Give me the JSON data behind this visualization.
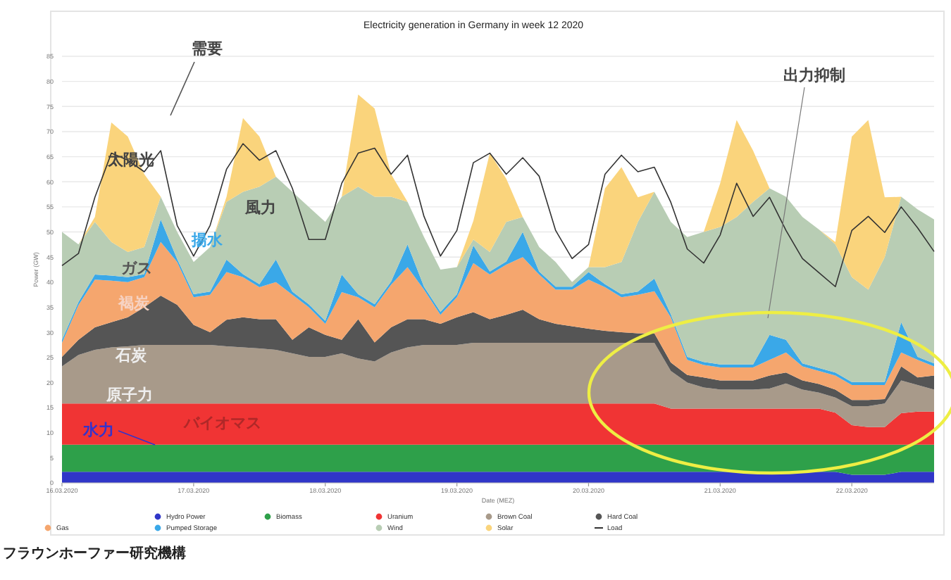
{
  "chart_data": {
    "type": "area",
    "stacked": true,
    "title": "Electricity generation in Germany in week 12 2020",
    "xlabel": "Date (MEZ)",
    "ylabel": "Power (GW)",
    "x": [
      "2020-03-16T00:00",
      "2020-03-16T03:00",
      "2020-03-16T06:00",
      "2020-03-16T09:00",
      "2020-03-16T12:00",
      "2020-03-16T15:00",
      "2020-03-16T18:00",
      "2020-03-16T21:00",
      "2020-03-17T00:00",
      "2020-03-17T03:00",
      "2020-03-17T06:00",
      "2020-03-17T09:00",
      "2020-03-17T12:00",
      "2020-03-17T15:00",
      "2020-03-17T18:00",
      "2020-03-17T21:00",
      "2020-03-18T00:00",
      "2020-03-18T03:00",
      "2020-03-18T06:00",
      "2020-03-18T09:00",
      "2020-03-18T12:00",
      "2020-03-18T15:00",
      "2020-03-18T18:00",
      "2020-03-18T21:00",
      "2020-03-19T00:00",
      "2020-03-19T03:00",
      "2020-03-19T06:00",
      "2020-03-19T09:00",
      "2020-03-19T12:00",
      "2020-03-19T15:00",
      "2020-03-19T18:00",
      "2020-03-19T21:00",
      "2020-03-20T00:00",
      "2020-03-20T03:00",
      "2020-03-20T06:00",
      "2020-03-20T09:00",
      "2020-03-20T12:00",
      "2020-03-20T15:00",
      "2020-03-20T18:00",
      "2020-03-20T21:00",
      "2020-03-21T00:00",
      "2020-03-21T03:00",
      "2020-03-21T06:00",
      "2020-03-21T09:00",
      "2020-03-21T12:00",
      "2020-03-21T15:00",
      "2020-03-21T18:00",
      "2020-03-21T21:00",
      "2020-03-22T00:00",
      "2020-03-22T03:00",
      "2020-03-22T06:00",
      "2020-03-22T09:00",
      "2020-03-22T12:00",
      "2020-03-22T15:00"
    ],
    "series": [
      {
        "name": "Hydro Power",
        "color": "#3036c8",
        "values": [
          2.2,
          2.2,
          2.2,
          2.2,
          2.2,
          2.2,
          2.2,
          2.2,
          2.2,
          2.2,
          2.2,
          2.2,
          2.2,
          2.2,
          2.2,
          2.2,
          2.2,
          2.2,
          2.2,
          2.2,
          2.2,
          2.2,
          2.2,
          2.2,
          2.2,
          2.2,
          2.2,
          2.2,
          2.2,
          2.2,
          2.2,
          2.2,
          2.2,
          2.2,
          2.2,
          2.2,
          2.2,
          2.2,
          2.2,
          2.2,
          2.2,
          2.2,
          2.2,
          2.2,
          2.2,
          2.2,
          2.2,
          2.2,
          1.6,
          1.6,
          1.6,
          2.2,
          2.2,
          2.2
        ]
      },
      {
        "name": "Biomass",
        "color": "#2ea04a",
        "values": [
          5.4,
          5.4,
          5.4,
          5.4,
          5.4,
          5.4,
          5.4,
          5.4,
          5.4,
          5.4,
          5.4,
          5.4,
          5.4,
          5.4,
          5.4,
          5.4,
          5.4,
          5.4,
          5.4,
          5.4,
          5.4,
          5.4,
          5.4,
          5.4,
          5.4,
          5.4,
          5.4,
          5.4,
          5.4,
          5.4,
          5.4,
          5.4,
          5.4,
          5.4,
          5.4,
          5.4,
          5.4,
          5.4,
          5.4,
          5.4,
          5.4,
          5.4,
          5.4,
          5.4,
          5.4,
          5.4,
          5.4,
          5.4,
          6.0,
          6.0,
          6.0,
          5.4,
          5.4,
          5.4
        ]
      },
      {
        "name": "Uranium",
        "color": "#f03434",
        "values": [
          8.2,
          8.2,
          8.2,
          8.2,
          8.2,
          8.2,
          8.2,
          8.2,
          8.2,
          8.2,
          8.2,
          8.2,
          8.2,
          8.2,
          8.2,
          8.2,
          8.2,
          8.2,
          8.2,
          8.2,
          8.2,
          8.2,
          8.2,
          8.2,
          8.2,
          8.2,
          8.2,
          8.2,
          8.2,
          8.2,
          8.2,
          8.2,
          8.2,
          8.2,
          8.2,
          8.2,
          8.2,
          7.2,
          7.2,
          7.2,
          7.2,
          7.2,
          7.2,
          7.2,
          7.2,
          7.2,
          7.2,
          6.4,
          3.9,
          3.5,
          3.5,
          6.3,
          6.6,
          6.6
        ]
      },
      {
        "name": "Brown Coal",
        "color": "#a89a8a",
        "values": [
          7.4,
          9.7,
          10.7,
          11.2,
          11.4,
          11.7,
          11.7,
          11.7,
          11.7,
          11.7,
          11.4,
          11.2,
          11.0,
          10.7,
          10.0,
          9.3,
          9.3,
          10.0,
          9.0,
          8.4,
          10.2,
          11.2,
          11.7,
          11.7,
          11.7,
          12.1,
          12.1,
          12.1,
          12.1,
          12.1,
          12.1,
          12.1,
          12.1,
          12.1,
          12.1,
          12.1,
          12.1,
          7.5,
          5.2,
          4.2,
          3.8,
          3.8,
          3.8,
          4.0,
          5.0,
          3.8,
          3.2,
          3.0,
          3.8,
          4.2,
          4.7,
          6.5,
          5.3,
          4.4
        ]
      },
      {
        "name": "Hard Coal",
        "color": "#555555",
        "values": [
          1.9,
          3.0,
          4.5,
          5.0,
          5.8,
          7.5,
          9.8,
          8.0,
          4.0,
          2.5,
          5.3,
          6.0,
          5.8,
          6.1,
          2.7,
          5.9,
          4.4,
          2.7,
          7.8,
          3.8,
          5.0,
          5.6,
          5.1,
          4.2,
          5.5,
          6.1,
          4.7,
          5.6,
          6.6,
          4.7,
          3.8,
          3.3,
          2.8,
          2.4,
          2.1,
          1.9,
          1.9,
          1.7,
          1.5,
          2.0,
          1.8,
          1.8,
          1.8,
          2.6,
          2.2,
          1.8,
          1.7,
          1.6,
          1.2,
          1.2,
          0.9,
          2.8,
          1.5,
          2.8
        ]
      },
      {
        "name": "Gas",
        "color": "#f5a66e",
        "values": [
          2.8,
          6.9,
          9.5,
          8.3,
          7.0,
          6.0,
          10.7,
          8.5,
          5.5,
          7.5,
          9.5,
          8.0,
          6.4,
          7.4,
          9.0,
          4.0,
          2.2,
          9.5,
          4.4,
          7.0,
          8.5,
          10.4,
          5.9,
          1.8,
          4.0,
          9.8,
          8.9,
          10.0,
          10.5,
          8.9,
          6.8,
          7.3,
          9.8,
          8.7,
          7.0,
          7.7,
          8.4,
          9.0,
          3.0,
          2.5,
          2.6,
          2.6,
          2.6,
          3.1,
          4.0,
          2.8,
          2.6,
          2.8,
          3.0,
          3.0,
          2.8,
          2.8,
          3.5,
          1.8
        ]
      },
      {
        "name": "Pumped Storage",
        "color": "#3aa8e8",
        "values": [
          0.6,
          0.6,
          1.0,
          1.0,
          1.0,
          0.6,
          4.5,
          0.6,
          0.6,
          0.6,
          2.5,
          0.6,
          0.6,
          4.5,
          0.6,
          0.6,
          0.6,
          3.5,
          0.6,
          0.6,
          0.6,
          4.5,
          0.6,
          0.6,
          0.6,
          3.5,
          0.6,
          0.6,
          5.0,
          0.6,
          0.6,
          0.6,
          1.5,
          0.6,
          0.6,
          0.6,
          2.5,
          0.6,
          0.6,
          0.6,
          0.6,
          0.6,
          0.6,
          5.0,
          2.5,
          0.6,
          0.6,
          0.6,
          0.6,
          0.6,
          0.6,
          6.0,
          0.6,
          0.6
        ]
      },
      {
        "name": "Wind",
        "color": "#b8cdb4",
        "values": [
          21.5,
          11.5,
          10.5,
          6.7,
          5.0,
          5.4,
          4.5,
          5.4,
          6.4,
          8.9,
          11.5,
          16.4,
          19.4,
          16.5,
          19.9,
          19.4,
          19.7,
          15.5,
          21.4,
          21.4,
          16.9,
          8.5,
          9.9,
          8.4,
          5.4,
          1.2,
          3.9,
          7.9,
          3.0,
          4.9,
          4.9,
          0.9,
          1.0,
          3.4,
          6.4,
          13.9,
          17.3,
          18.4,
          23.9,
          25.9,
          27.4,
          29.4,
          32.4,
          29.2,
          28.5,
          29.2,
          27.6,
          25.5,
          20.9,
          18.4,
          24.9,
          25.0,
          29.4,
          28.7
        ]
      },
      {
        "name": "Solar",
        "color": "#fad47c",
        "values": [
          0,
          0,
          1.0,
          23.8,
          23.0,
          14.5,
          0,
          0,
          0,
          0,
          1.0,
          14.7,
          10.0,
          0,
          0,
          0,
          0,
          0,
          18.4,
          17.6,
          4.5,
          0,
          0,
          0,
          0,
          3.7,
          19.7,
          8.6,
          0,
          0,
          0,
          0,
          0,
          15.7,
          18.9,
          4.9,
          0,
          0,
          0,
          0,
          8.7,
          19.3,
          10.2,
          0,
          0,
          0,
          0,
          0.5,
          28.0,
          33.8,
          11.9,
          0,
          0,
          0
        ]
      },
      {
        "name": "Load",
        "type": "line",
        "color": "#333333",
        "values": [
          43.3,
          45.7,
          56.9,
          65.7,
          64.3,
          62.0,
          66.2,
          51.3,
          45.2,
          51.3,
          62.5,
          67.6,
          64.3,
          66.2,
          58.7,
          48.5,
          48.5,
          59.7,
          65.7,
          66.7,
          61.5,
          65.3,
          53.1,
          45.2,
          50.3,
          63.8,
          65.7,
          61.5,
          64.8,
          61.1,
          50.3,
          44.7,
          47.5,
          61.5,
          65.3,
          62.0,
          62.9,
          55.9,
          46.6,
          43.8,
          49.4,
          59.7,
          53.1,
          56.9,
          50.3,
          44.7,
          41.9,
          39.1,
          50.3,
          53.1,
          49.9,
          55.0,
          50.8,
          46.1
        ]
      }
    ],
    "xlim": [
      "2020-03-16T00:00",
      "2020-03-22T15:00"
    ],
    "xticks": [
      {
        "value": "2020-03-16",
        "label": "16.03.2020"
      },
      {
        "value": "2020-03-17",
        "label": "17.03.2020"
      },
      {
        "value": "2020-03-18",
        "label": "18.03.2020"
      },
      {
        "value": "2020-03-19",
        "label": "19.03.2020"
      },
      {
        "value": "2020-03-20",
        "label": "20.03.2020"
      },
      {
        "value": "2020-03-21",
        "label": "21.03.2020"
      },
      {
        "value": "2020-03-22",
        "label": "22.03.2020"
      }
    ],
    "ylim": [
      0,
      85
    ],
    "yticks": [
      0,
      5,
      10,
      15,
      20,
      25,
      30,
      35,
      40,
      45,
      50,
      55,
      60,
      65,
      70,
      75,
      80,
      85
    ],
    "grid": "y",
    "legend": "bottom",
    "marker": "none",
    "line_style": "solid",
    "annotations": [
      "需要",
      "太陽光",
      "風力",
      "揚水",
      "ガス",
      "褐炭",
      "石炭",
      "原子力",
      "バイオマス",
      "水力",
      "出力抑制",
      "フラウンホーファー研究機構"
    ]
  }
}
